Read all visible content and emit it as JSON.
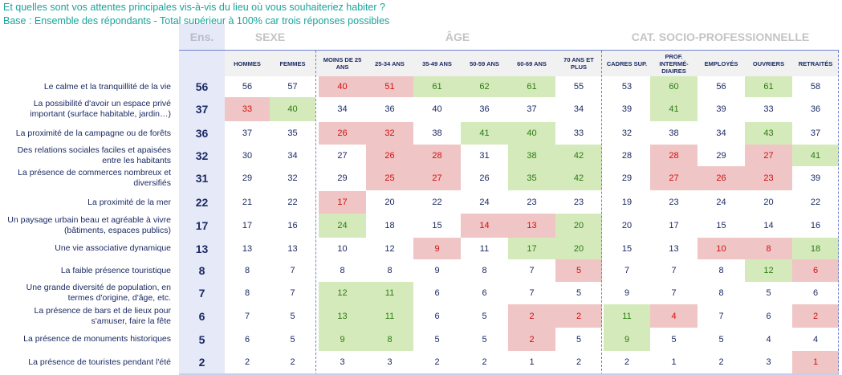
{
  "title": {
    "question": "Et quelles sont vos attentes principales vis-à-vis du lieu où vous souhaiteriez habiter ?",
    "base": "Base : Ensemble des répondants - Total supérieur à 100% car trois réponses possibles"
  },
  "groups": {
    "ens": "Ens.",
    "sexe": "SEXE",
    "age": "ÂGE",
    "csp": "CAT. SOCIO-PROFESSIONNELLE"
  },
  "columns": [
    "HOMMES",
    "FEMMES",
    "MOINS DE 25 ANS",
    "25-34 ANS",
    "35-49 ANS",
    "50-59 ANS",
    "60-69 ANS",
    "70 ANS ET PLUS",
    "CADRES SUP.",
    "PROF. INTERMÉ-DIAIRES",
    "EMPLOYÉS",
    "OUVRIERS",
    "RETRAITÉS"
  ],
  "highlight_colors": {
    "red_bg": "#f0c5c5",
    "red_text": "#d01010",
    "green_bg": "#d5eabb",
    "green_text": "#2a7a12"
  },
  "rows": [
    {
      "label": "Le calme et la tranquillité de la vie",
      "ens": "56",
      "values": [
        "56",
        "57",
        "40",
        "51",
        "61",
        "62",
        "61",
        "55",
        "53",
        "60",
        "56",
        "61",
        "58"
      ],
      "highlight": [
        "",
        "",
        "r",
        "r",
        "g",
        "g",
        "g",
        "",
        "",
        "g",
        "",
        "g",
        ""
      ]
    },
    {
      "label": "La possibilité d'avoir un espace privé important (surface habitable, jardin…)",
      "ens": "37",
      "values": [
        "33",
        "40",
        "34",
        "36",
        "40",
        "36",
        "37",
        "34",
        "39",
        "41",
        "39",
        "33",
        "36"
      ],
      "highlight": [
        "r",
        "g",
        "",
        "",
        "",
        "",
        "",
        "",
        "",
        "g",
        "",
        "",
        ""
      ]
    },
    {
      "label": "La proximité de la campagne ou de forêts",
      "ens": "36",
      "values": [
        "37",
        "35",
        "26",
        "32",
        "38",
        "41",
        "40",
        "33",
        "32",
        "38",
        "34",
        "43",
        "37"
      ],
      "highlight": [
        "",
        "",
        "r",
        "r",
        "",
        "g",
        "g",
        "",
        "",
        "",
        "",
        "g",
        ""
      ]
    },
    {
      "label": "Des relations sociales faciles et apaisées entre les habitants",
      "ens": "32",
      "values": [
        "30",
        "34",
        "27",
        "26",
        "28",
        "31",
        "38",
        "42",
        "28",
        "28",
        "29",
        "27",
        "41"
      ],
      "highlight": [
        "",
        "",
        "",
        "r",
        "r",
        "",
        "g",
        "g",
        "",
        "r",
        "",
        "r",
        "g"
      ]
    },
    {
      "label": "La présence de commerces nombreux et diversifiés",
      "ens": "31",
      "values": [
        "29",
        "32",
        "29",
        "25",
        "27",
        "26",
        "35",
        "42",
        "29",
        "27",
        "26",
        "23",
        "39"
      ],
      "highlight": [
        "",
        "",
        "",
        "r",
        "r",
        "",
        "g",
        "g",
        "",
        "r",
        "r",
        "r",
        ""
      ]
    },
    {
      "label": "La proximité de la mer",
      "ens": "22",
      "values": [
        "21",
        "22",
        "17",
        "20",
        "22",
        "24",
        "23",
        "23",
        "19",
        "23",
        "24",
        "20",
        "22"
      ],
      "highlight": [
        "",
        "",
        "r",
        "",
        "",
        "",
        "",
        "",
        "",
        "",
        "",
        "",
        ""
      ]
    },
    {
      "label": "Un paysage urbain beau et agréable à vivre (bâtiments, espaces publics)",
      "ens": "17",
      "values": [
        "17",
        "16",
        "24",
        "18",
        "15",
        "14",
        "13",
        "20",
        "20",
        "17",
        "15",
        "14",
        "16"
      ],
      "highlight": [
        "",
        "",
        "g",
        "",
        "",
        "r",
        "r",
        "g",
        "",
        "",
        "",
        "",
        ""
      ]
    },
    {
      "label": "Une vie associative dynamique",
      "ens": "13",
      "values": [
        "13",
        "13",
        "10",
        "12",
        "9",
        "11",
        "17",
        "20",
        "15",
        "13",
        "10",
        "8",
        "18"
      ],
      "highlight": [
        "",
        "",
        "",
        "",
        "r",
        "",
        "g",
        "g",
        "",
        "",
        "r",
        "r",
        "g"
      ]
    },
    {
      "label": "La faible présence touristique",
      "ens": "8",
      "values": [
        "8",
        "7",
        "8",
        "8",
        "9",
        "8",
        "7",
        "5",
        "7",
        "7",
        "8",
        "12",
        "6"
      ],
      "highlight": [
        "",
        "",
        "",
        "",
        "",
        "",
        "",
        "r",
        "",
        "",
        "",
        "g",
        "r"
      ]
    },
    {
      "label": "Une grande diversité de population, en termes d'origine, d'âge, etc.",
      "ens": "7",
      "values": [
        "8",
        "7",
        "12",
        "11",
        "6",
        "6",
        "7",
        "5",
        "9",
        "7",
        "8",
        "5",
        "6"
      ],
      "highlight": [
        "",
        "",
        "g",
        "g",
        "",
        "",
        "",
        "",
        "",
        "",
        "",
        "",
        ""
      ]
    },
    {
      "label": "La présence de bars et de lieux pour s'amuser, faire la fête",
      "ens": "6",
      "values": [
        "7",
        "5",
        "13",
        "11",
        "6",
        "5",
        "2",
        "2",
        "11",
        "4",
        "7",
        "6",
        "2"
      ],
      "highlight": [
        "",
        "",
        "g",
        "g",
        "",
        "",
        "r",
        "r",
        "g",
        "r",
        "",
        "",
        "r"
      ]
    },
    {
      "label": "La présence de monuments historiques",
      "ens": "5",
      "values": [
        "6",
        "5",
        "9",
        "8",
        "5",
        "5",
        "2",
        "5",
        "9",
        "5",
        "5",
        "4",
        "4"
      ],
      "highlight": [
        "",
        "",
        "g",
        "g",
        "",
        "",
        "r",
        "",
        "g",
        "",
        "",
        "",
        ""
      ]
    },
    {
      "label": "La présence de touristes pendant l'été",
      "ens": "2",
      "values": [
        "2",
        "2",
        "3",
        "3",
        "2",
        "2",
        "1",
        "2",
        "2",
        "1",
        "2",
        "3",
        "1"
      ],
      "highlight": [
        "",
        "",
        "",
        "",
        "",
        "",
        "",
        "",
        "",
        "",
        "",
        "",
        "r"
      ]
    }
  ]
}
